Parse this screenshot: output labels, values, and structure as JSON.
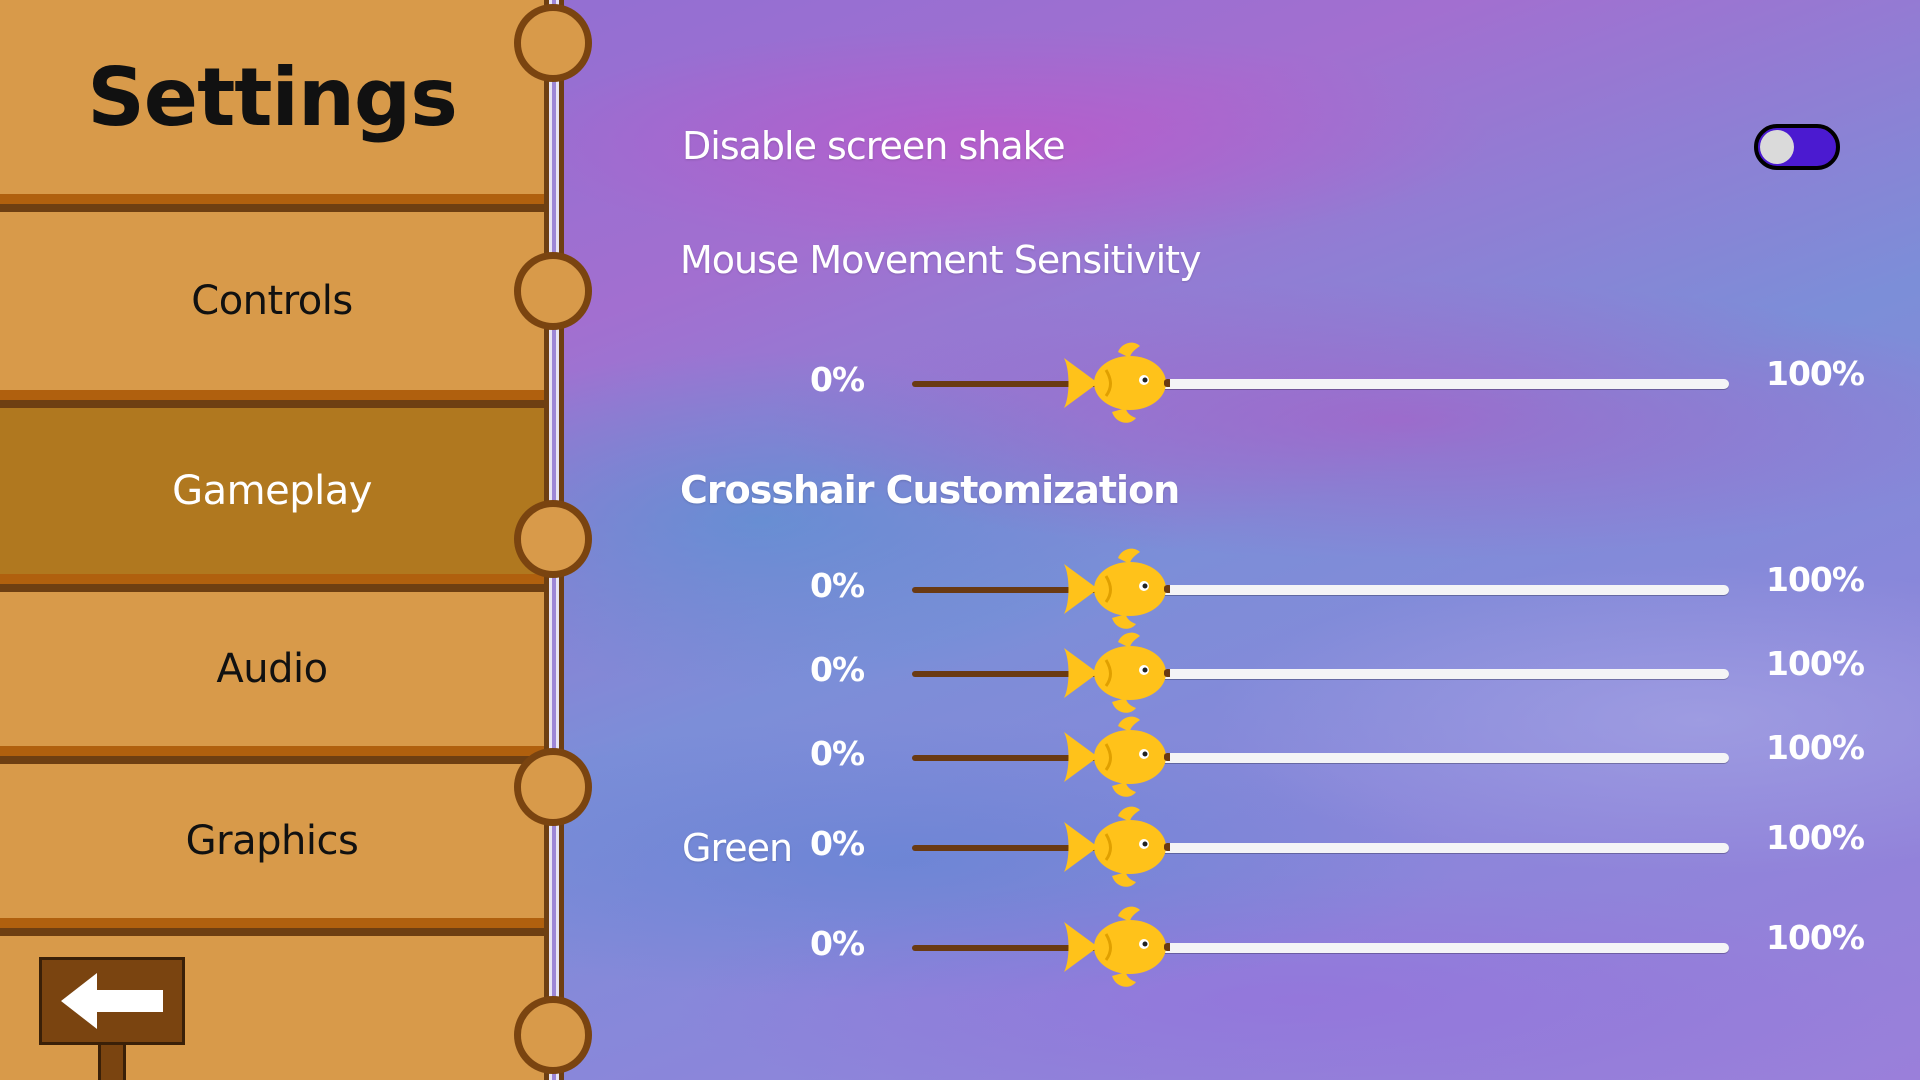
{
  "sidebar": {
    "title": "Settings",
    "items": [
      {
        "label": "Controls"
      },
      {
        "label": "Gameplay"
      },
      {
        "label": "Audio"
      },
      {
        "label": "Graphics"
      }
    ],
    "active": "Gameplay",
    "back_icon": "arrow-left-icon"
  },
  "gameplay": {
    "screen_shake": {
      "label": "Disable screen shake",
      "enabled": true
    },
    "mouse_sensitivity": {
      "label": "Mouse Movement Sensitivity",
      "min": "0%",
      "max": "100%",
      "value": 0.23
    },
    "crosshair": {
      "title": "Crosshair Customization",
      "sliders": [
        {
          "label": "",
          "min": "0%",
          "max": "100%",
          "value": 0.23
        },
        {
          "label": "",
          "min": "0%",
          "max": "100%",
          "value": 0.23
        },
        {
          "label": "",
          "min": "0%",
          "max": "100%",
          "value": 0.23
        },
        {
          "label": "Green",
          "min": "0%",
          "max": "100%",
          "value": 0.23
        },
        {
          "label": "",
          "min": "0%",
          "max": "100%",
          "value": 0.23
        }
      ]
    }
  },
  "colors": {
    "plank": "#d89a4a",
    "plank_active": "#b0781f",
    "toggle_on": "#4b1ad0",
    "slider_thumb": "#ffc21a"
  },
  "icons": {
    "slider_thumb": "fish-icon",
    "toggle": "toggle-switch"
  }
}
